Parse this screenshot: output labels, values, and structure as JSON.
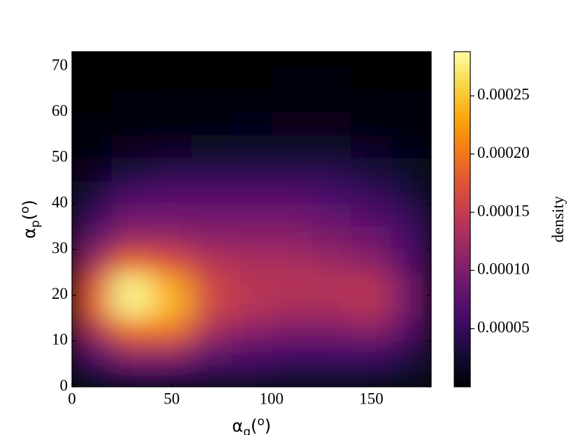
{
  "chart_data": {
    "type": "heatmap",
    "colormap": "inferno",
    "smooth": true,
    "xlabel": [
      "α",
      "q",
      "(",
      "o",
      ")"
    ],
    "ylabel": [
      "α",
      "p",
      "(",
      "o",
      ")"
    ],
    "colorbar_label": "density",
    "xlim": [
      0,
      180
    ],
    "ylim": [
      0,
      73.2
    ],
    "xticks": [
      0,
      50,
      100,
      150
    ],
    "yticks": [
      0,
      10,
      20,
      30,
      40,
      50,
      60,
      70
    ],
    "clim": [
      0,
      0.000288
    ],
    "cticks": [
      5e-05,
      {
        "value": 0.0001,
        "label": "0.00010"
      },
      0.00015,
      {
        "value": 0.0002,
        "label": "0.00020"
      },
      0.00025
    ],
    "x": [
      10,
      30,
      50,
      70,
      90,
      110,
      130,
      150,
      170
    ],
    "y": [
      2.5,
      7.5,
      12.5,
      17.5,
      22.5,
      27.5,
      32.5,
      37.5,
      42.5,
      47.5,
      52.5,
      57.5,
      62.5,
      67.5,
      72.5
    ],
    "z": [
      [
        3e-05,
        5e-05,
        5e-05,
        4e-05,
        4e-05,
        3e-05,
        3e-05,
        3e-05,
        2e-05
      ],
      [
        7e-05,
        0.00012,
        0.00012,
        8e-05,
        7e-05,
        6e-05,
        6e-05,
        6e-05,
        4e-05
      ],
      [
        0.00013,
        0.0002,
        0.0002,
        0.00013,
        0.00011,
        0.0001,
        0.0001,
        0.00011,
        7e-05
      ],
      [
        0.00018,
        0.00028,
        0.00024,
        0.00016,
        0.00014,
        0.00013,
        0.00013,
        0.00014,
        9e-05
      ],
      [
        0.00017,
        0.00028,
        0.00023,
        0.00016,
        0.00014,
        0.00014,
        0.00014,
        0.00014,
        9e-05
      ],
      [
        0.00012,
        0.00019,
        0.00017,
        0.00014,
        0.00013,
        0.00013,
        0.00012,
        0.00011,
        7e-05
      ],
      [
        8e-05,
        0.00012,
        0.00012,
        0.00011,
        0.00011,
        0.00011,
        0.0001,
        9e-05,
        6e-05
      ],
      [
        5e-05,
        9e-05,
        9e-05,
        9e-05,
        9e-05,
        9e-05,
        8e-05,
        7e-05,
        5e-05
      ],
      [
        3e-05,
        6e-05,
        7e-05,
        7e-05,
        7e-05,
        7e-05,
        6e-05,
        5e-05,
        3e-05
      ],
      [
        1.5e-05,
        3e-05,
        4e-05,
        4e-05,
        4e-05,
        4e-05,
        4e-05,
        3e-05,
        2e-05
      ],
      [
        6e-06,
        1.2e-05,
        1.5e-05,
        1.8e-05,
        2e-05,
        2e-05,
        2e-05,
        1.5e-05,
        8e-06
      ],
      [
        3e-06,
        5e-06,
        6e-06,
        7e-06,
        8e-06,
        1e-05,
        1e-05,
        7e-06,
        4e-06
      ],
      [
        1e-06,
        2e-06,
        3e-06,
        3e-06,
        4e-06,
        5e-06,
        5e-06,
        4e-06,
        2e-06
      ],
      [
        5e-07,
        1e-06,
        1e-06,
        1e-06,
        1e-06,
        2e-06,
        2e-06,
        1e-06,
        1e-06
      ],
      [
        0,
        0,
        0,
        0,
        0,
        0,
        0,
        0,
        0
      ]
    ]
  }
}
